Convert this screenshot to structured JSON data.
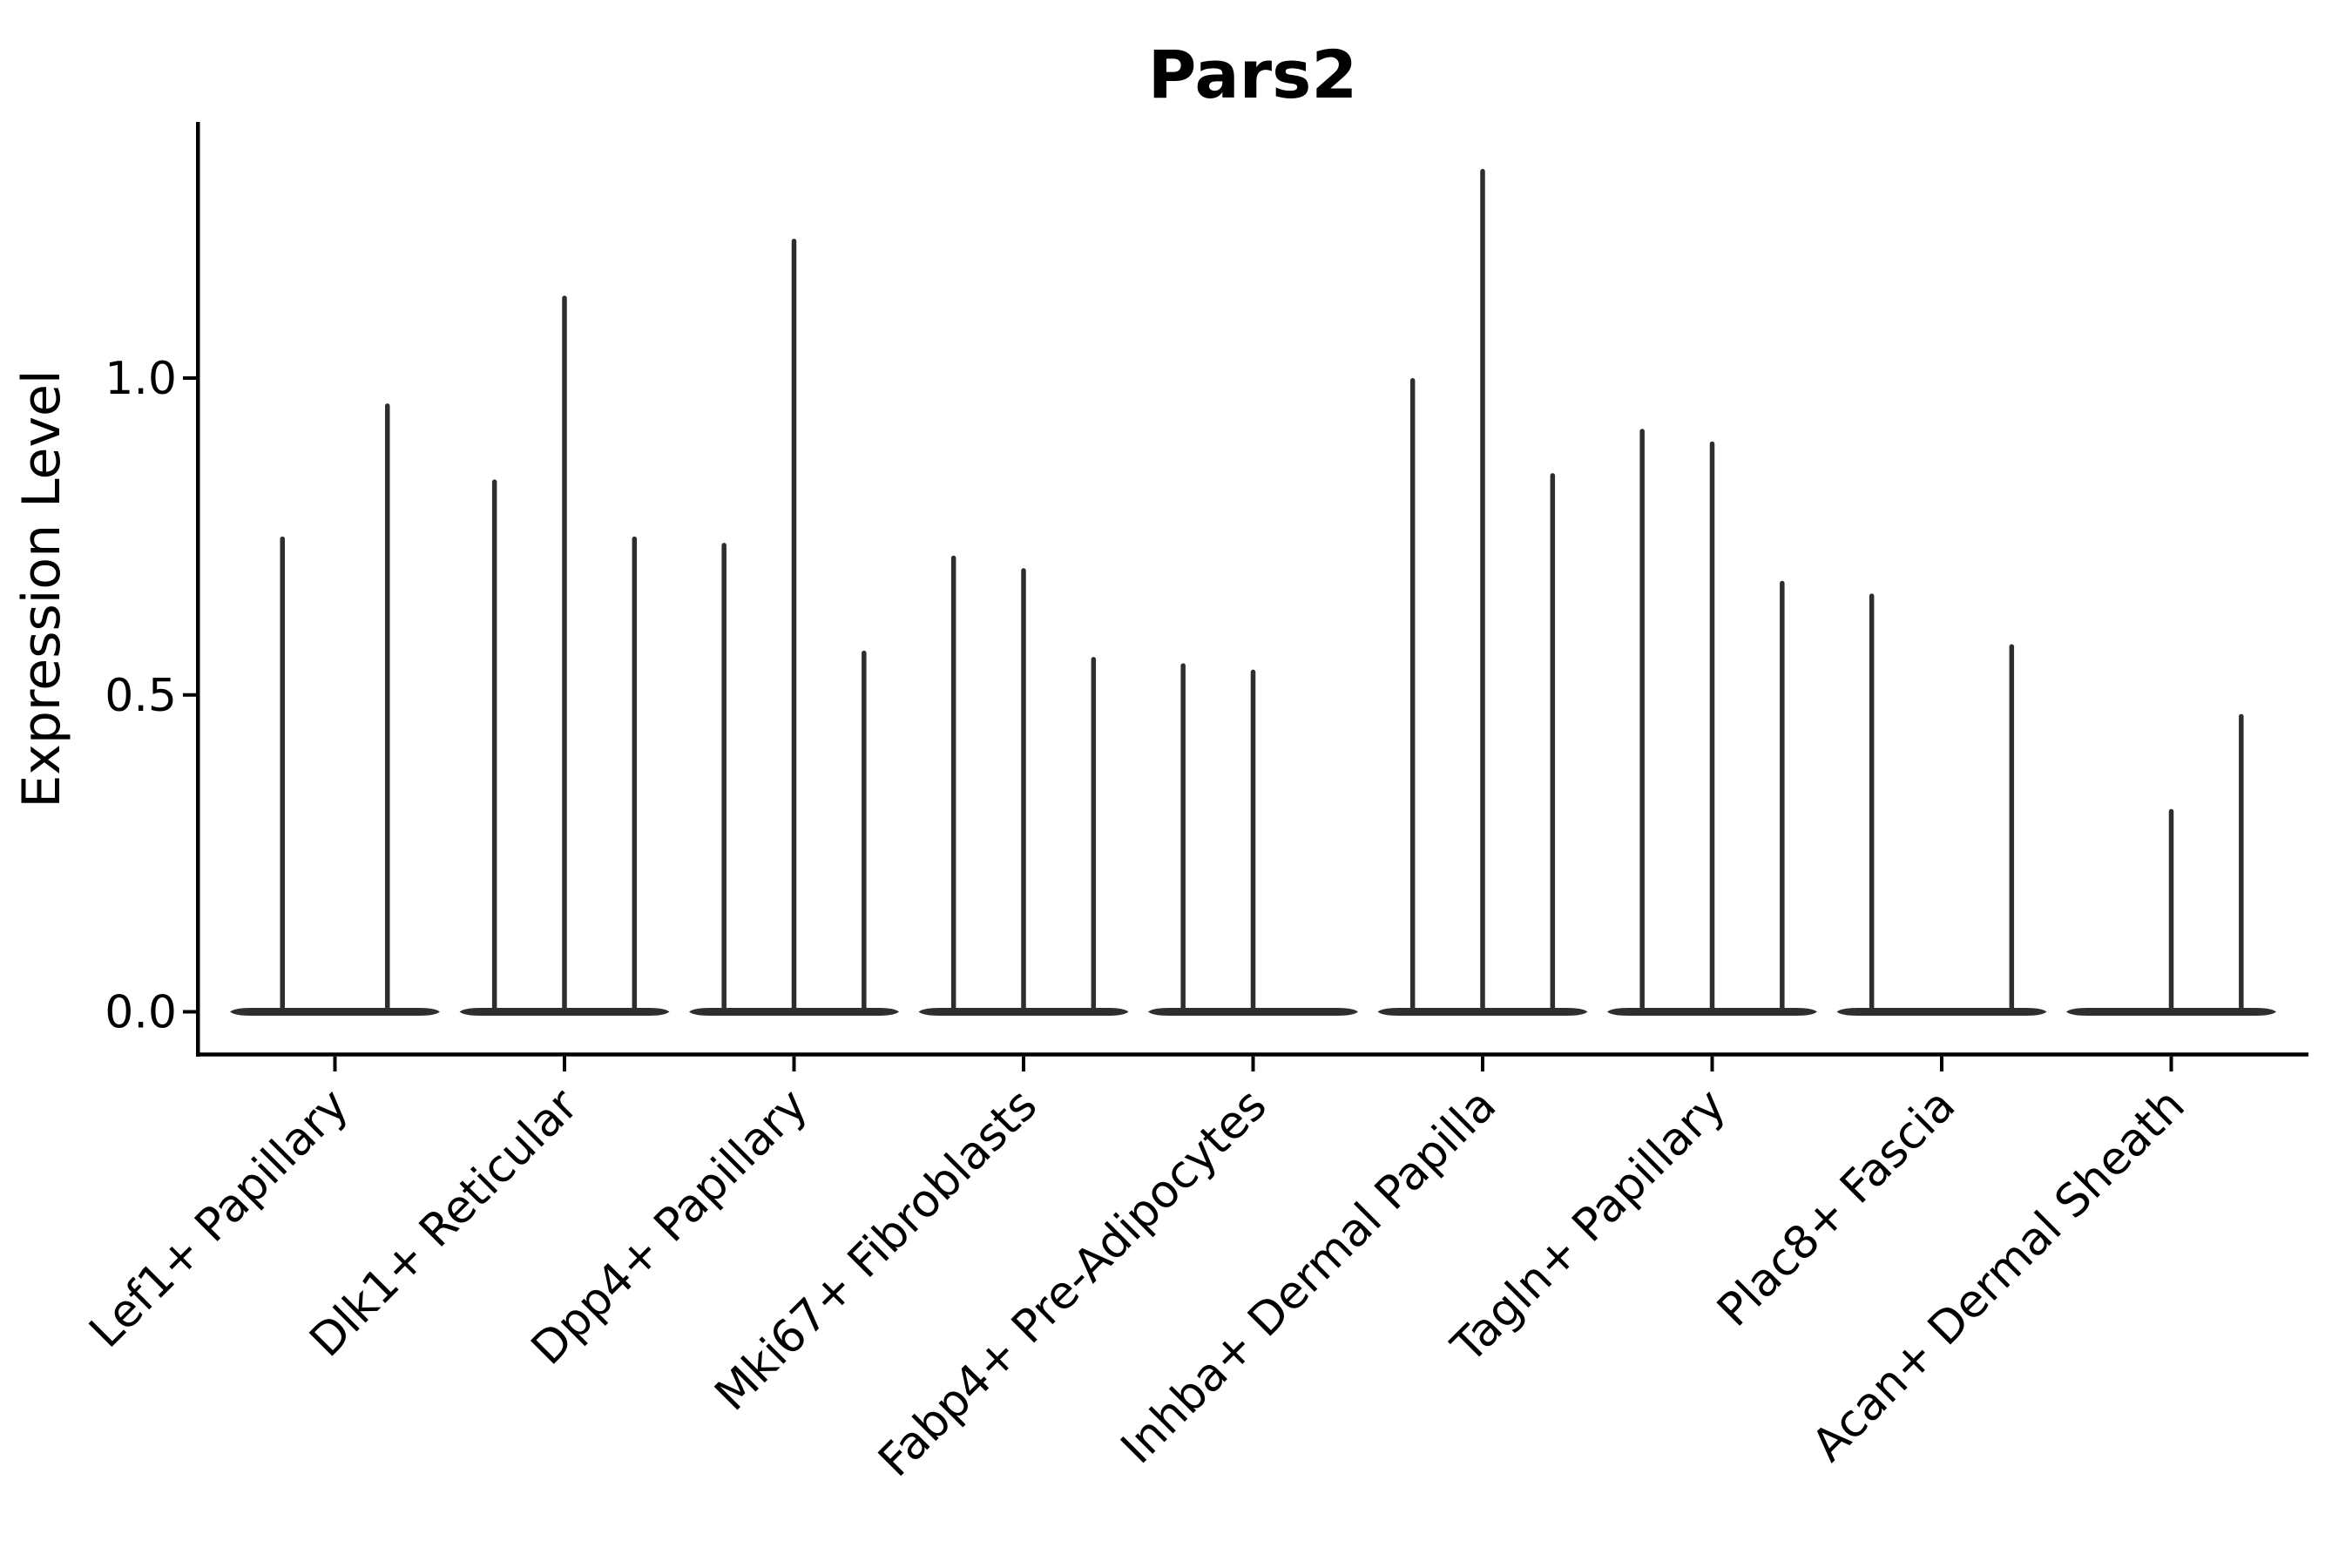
{
  "chart_data": {
    "type": "violin",
    "title": "Pars2",
    "ylabel": "Expression Level",
    "xlabel": "",
    "grid": false,
    "legend_position": "none",
    "ylim": [
      -0.07,
      1.4
    ],
    "ytick_labels": [
      "0.0",
      "0.5",
      "1.0"
    ],
    "ytick_values": [
      0.0,
      0.5,
      1.0
    ],
    "categories": [
      "Lef1+ Papillary",
      "Dlk1+ Reticular",
      "Dpp4+ Papillary",
      "Mki67+ Fibroblasts",
      "Fabp4+ Pre-Adipocytes",
      "Inhba+ Dermal Papilla",
      "Tagln+ Papillary",
      "Plac8+ Fascia",
      "Acan+ Dermal Sheath"
    ],
    "groups": [
      {
        "label": "Lef1+ Papillary",
        "slots": 2,
        "violins": [
          {
            "slot": 0,
            "max": 0.75
          },
          {
            "slot": 1,
            "max": 0.96
          }
        ]
      },
      {
        "label": "Dlk1+ Reticular",
        "slots": 3,
        "violins": [
          {
            "slot": 0,
            "max": 0.84
          },
          {
            "slot": 1,
            "max": 1.13
          },
          {
            "slot": 2,
            "max": 0.75
          }
        ]
      },
      {
        "label": "Dpp4+ Papillary",
        "slots": 3,
        "violins": [
          {
            "slot": 0,
            "max": 0.74
          },
          {
            "slot": 1,
            "max": 1.22
          },
          {
            "slot": 2,
            "max": 0.57
          }
        ]
      },
      {
        "label": "Mki67+ Fibroblasts",
        "slots": 3,
        "violins": [
          {
            "slot": 0,
            "max": 0.72
          },
          {
            "slot": 1,
            "max": 0.7
          },
          {
            "slot": 2,
            "max": 0.56
          }
        ]
      },
      {
        "label": "Fabp4+ Pre-Adipocytes",
        "slots": 3,
        "violins": [
          {
            "slot": 0,
            "max": 0.55
          },
          {
            "slot": 1,
            "max": 0.54
          }
        ]
      },
      {
        "label": "Inhba+ Dermal Papilla",
        "slots": 3,
        "violins": [
          {
            "slot": 0,
            "max": 1.0
          },
          {
            "slot": 1,
            "max": 1.33
          },
          {
            "slot": 2,
            "max": 0.85
          }
        ]
      },
      {
        "label": "Tagln+ Papillary",
        "slots": 3,
        "violins": [
          {
            "slot": 0,
            "max": 0.92
          },
          {
            "slot": 1,
            "max": 0.9
          },
          {
            "slot": 2,
            "max": 0.68
          }
        ]
      },
      {
        "label": "Plac8+ Fascia",
        "slots": 3,
        "violins": [
          {
            "slot": 0,
            "max": 0.66
          },
          {
            "slot": 2,
            "max": 0.58
          }
        ]
      },
      {
        "label": "Acan+ Dermal Sheath",
        "slots": 3,
        "violins": [
          {
            "slot": 1,
            "max": 0.32
          },
          {
            "slot": 2,
            "max": 0.47
          }
        ]
      }
    ],
    "colors": {
      "violin": "#2e2e2e",
      "axis": "#000000",
      "text": "#000000",
      "background": "#ffffff"
    }
  }
}
